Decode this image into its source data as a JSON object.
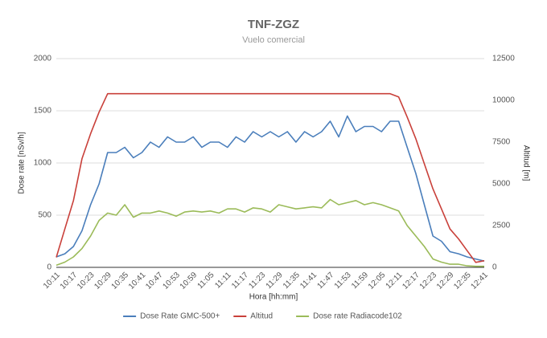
{
  "chart_data": {
    "type": "line",
    "title": "TNF-ZGZ",
    "subtitle": "Vuelo comercial",
    "x_label": "Hora [hh:mm]",
    "y_label": "Dose rate [nSv/h]",
    "y2_label": "Altitud [m]",
    "categories": [
      "10:11",
      null,
      "10:17",
      null,
      "10:23",
      null,
      "10:29",
      null,
      "10:35",
      null,
      "10:41",
      null,
      "10:47",
      null,
      "10:53",
      null,
      "10:59",
      null,
      "11:05",
      null,
      "11:11",
      null,
      "11:17",
      null,
      "11:23",
      null,
      "11:29",
      null,
      "11:35",
      null,
      "11:41",
      null,
      "11:47",
      null,
      "11:53",
      null,
      "11:59",
      null,
      "12:05",
      null,
      "12:11",
      null,
      "12:17",
      null,
      "12:23",
      null,
      "12:29",
      null,
      "12:35",
      null,
      "12:41"
    ],
    "series": [
      {
        "name": "Dose Rate GMC-500+",
        "color": "#4a7ebb",
        "values": [
          100,
          130,
          200,
          350,
          600,
          800,
          1100,
          1100,
          1150,
          1050,
          1100,
          1200,
          1150,
          1250,
          1200,
          1200,
          1250,
          1150,
          1200,
          1200,
          1150,
          1250,
          1200,
          1300,
          1250,
          1300,
          1250,
          1300,
          1200,
          1300,
          1250,
          1300,
          1400,
          1250,
          1450,
          1300,
          1350,
          1350,
          1300,
          1400,
          1400,
          1150,
          900,
          600,
          300,
          250,
          150,
          130,
          100,
          80,
          60
        ]
      },
      {
        "name": "Altitud",
        "color": "#c9403a",
        "axis": "y2",
        "values": [
          600,
          2300,
          4000,
          6500,
          8000,
          9300,
          10400,
          10400,
          10400,
          10400,
          10400,
          10400,
          10400,
          10400,
          10400,
          10400,
          10400,
          10400,
          10400,
          10400,
          10400,
          10400,
          10400,
          10400,
          10400,
          10400,
          10400,
          10400,
          10400,
          10400,
          10400,
          10400,
          10400,
          10400,
          10400,
          10400,
          10400,
          10400,
          10400,
          10400,
          10200,
          9000,
          7700,
          6200,
          4700,
          3500,
          2300,
          1700,
          1000,
          300,
          400
        ]
      },
      {
        "name": "Dose rate Radiacode102",
        "color": "#9bbb59",
        "values": [
          20,
          50,
          100,
          180,
          300,
          450,
          520,
          500,
          600,
          480,
          520,
          520,
          540,
          520,
          490,
          530,
          540,
          530,
          540,
          520,
          560,
          560,
          530,
          570,
          560,
          530,
          600,
          580,
          560,
          570,
          580,
          570,
          650,
          600,
          620,
          640,
          600,
          620,
          600,
          570,
          540,
          400,
          300,
          200,
          80,
          50,
          30,
          30,
          15,
          10,
          10
        ]
      }
    ],
    "ylim": [
      0,
      2000
    ],
    "yticks": [
      0,
      500,
      1000,
      1500,
      2000
    ],
    "y2lim": [
      0,
      12500
    ],
    "y2ticks": [
      0,
      2500,
      5000,
      7500,
      10000,
      12500
    ],
    "grid": true,
    "legend": "bottom"
  }
}
